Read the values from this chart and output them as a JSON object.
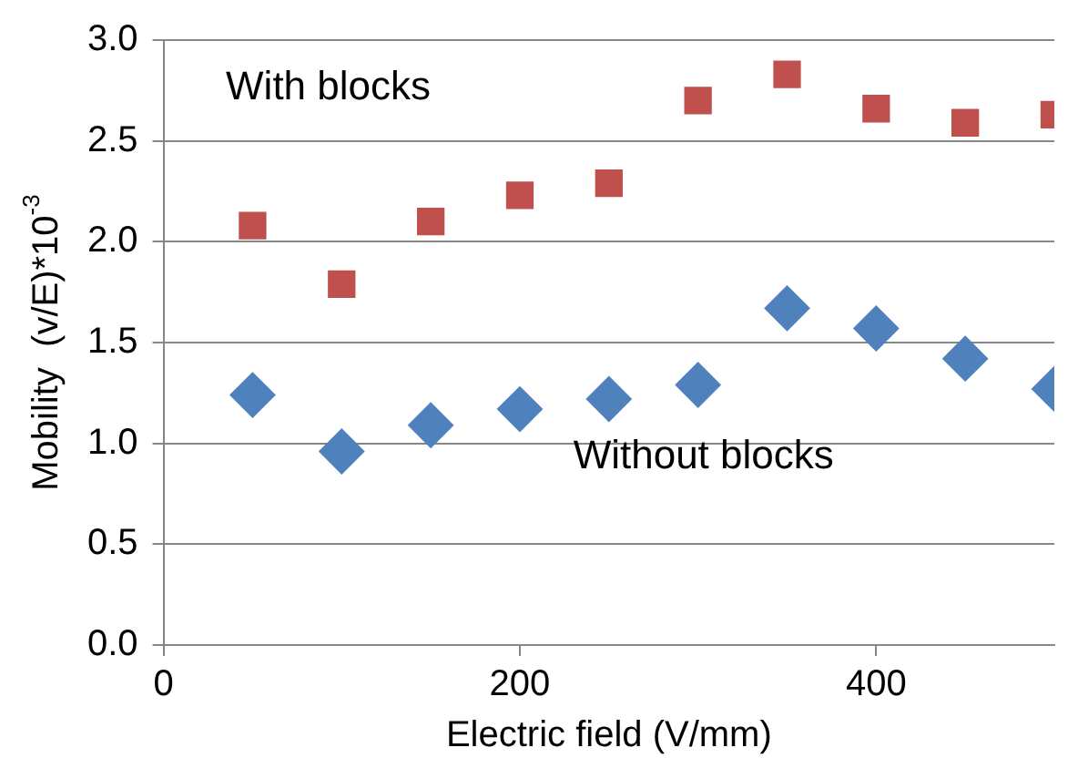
{
  "chart_data": {
    "type": "scatter",
    "xlabel": "Electric field (V/mm)",
    "ylabel": "Mobility  (v/E)*10$^{-3}$",
    "x": [
      50,
      100,
      150,
      200,
      250,
      300,
      350,
      400,
      450,
      500
    ],
    "series": [
      {
        "name": "With blocks",
        "color": "#c0504d",
        "marker": "square",
        "values": [
          2.08,
          1.79,
          2.1,
          2.23,
          2.29,
          2.7,
          2.83,
          2.66,
          2.59,
          2.63
        ]
      },
      {
        "name": "Without blocks",
        "color": "#4f81bd",
        "marker": "diamond",
        "values": [
          1.24,
          0.96,
          1.09,
          1.17,
          1.22,
          1.29,
          1.67,
          1.57,
          1.42,
          1.27
        ]
      }
    ],
    "xlim": [
      0,
      500
    ],
    "xticks": [
      0,
      200,
      400
    ],
    "ylim": [
      0,
      3.0
    ],
    "yticks": [
      {
        "value": 0,
        "label": "0.0"
      },
      {
        "value": 0.5,
        "label": "0.5"
      },
      {
        "value": 1,
        "label": "1.0"
      },
      {
        "value": 1.5,
        "label": "1.5"
      },
      {
        "value": 2,
        "label": "2.0"
      },
      {
        "value": 2.5,
        "label": "2.5"
      },
      {
        "value": 3,
        "label": "3.0"
      }
    ],
    "grid": "y",
    "legend": false
  }
}
